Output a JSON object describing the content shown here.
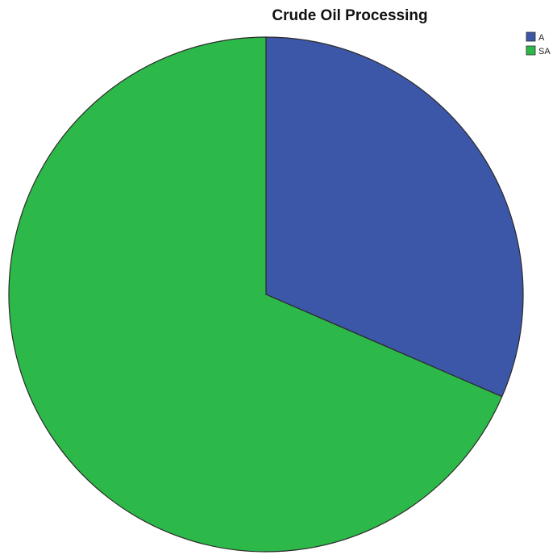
{
  "chart_data": {
    "type": "pie",
    "title": "Crude Oil Processing",
    "slices": [
      {
        "label": "A",
        "value": 31.5,
        "color": "#3c57a8"
      },
      {
        "label": "SA",
        "value": 68.5,
        "color": "#2db84a"
      }
    ],
    "start": "12 o'clock",
    "direction": "clockwise",
    "legend": {
      "position": "top-right",
      "entries": [
        "A",
        "SA"
      ]
    }
  }
}
